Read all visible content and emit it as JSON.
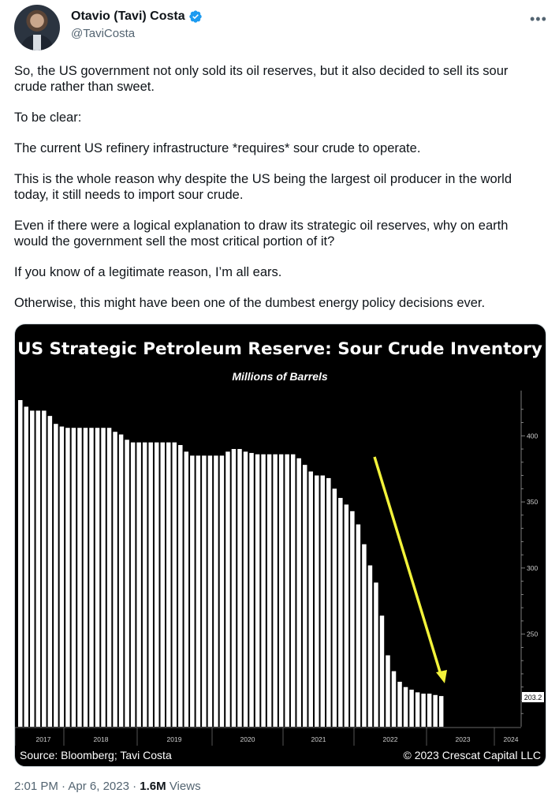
{
  "author": {
    "name": "Otavio (Tavi) Costa",
    "handle": "@TaviCosta",
    "verified_icon": "verified-badge-icon",
    "brand_color": "#1d9bf0"
  },
  "tweet": {
    "paragraphs": [
      "So, the US government not only sold its oil reserves, but it also decided to sell its sour crude rather than sweet.",
      "To be clear:",
      "The current US refinery infrastructure *requires* sour crude to operate.",
      "This is the whole reason why despite the US being the largest oil producer in the world today, it still needs to import sour crude.",
      "Even if there were a logical explanation to draw its strategic oil reserves, why on earth would the government sell the most critical portion of it?",
      "If you know of a legitimate reason, I’m all ears.",
      "Otherwise, this might have been one of the dumbest energy policy decisions ever."
    ],
    "time": "2:01 PM",
    "sep": "·",
    "date": "Apr 6, 2023",
    "views_count": "1.6M",
    "views_label": "Views"
  },
  "chart_data": {
    "type": "bar",
    "title": "US Strategic Petroleum Reserve: Sour Crude Inventory",
    "subtitle": "Millions of Barrels",
    "source": "Source: Bloomberg; Tavi Costa",
    "copyright": "© 2023 Crescat Capital LLC",
    "last_value_label": "203.2",
    "x_tick_labels": [
      "2017",
      "2018",
      "2019",
      "2020",
      "2021",
      "2022",
      "2023",
      "2024"
    ],
    "y_ticks": [
      250,
      300,
      350,
      400
    ],
    "ylim": [
      180,
      430
    ],
    "bar_color": "#ffffff",
    "arrow_color": "#f2f23a",
    "series": [
      {
        "values": [
          427,
          422,
          419,
          419,
          419,
          415,
          409,
          407,
          406,
          406,
          406,
          406,
          406,
          406,
          406,
          406,
          403,
          401,
          397,
          395,
          395,
          395,
          395,
          395,
          395,
          395,
          395,
          393,
          388,
          385,
          385,
          385,
          385,
          385,
          385,
          388,
          390,
          390,
          388,
          387,
          386,
          386,
          386,
          386,
          386,
          386,
          386,
          383,
          378,
          373,
          370,
          370,
          368,
          360,
          353,
          348,
          343,
          333,
          318,
          302,
          289,
          264,
          234,
          222,
          214,
          210,
          208,
          206,
          205,
          205,
          204,
          203.2
        ]
      }
    ]
  }
}
